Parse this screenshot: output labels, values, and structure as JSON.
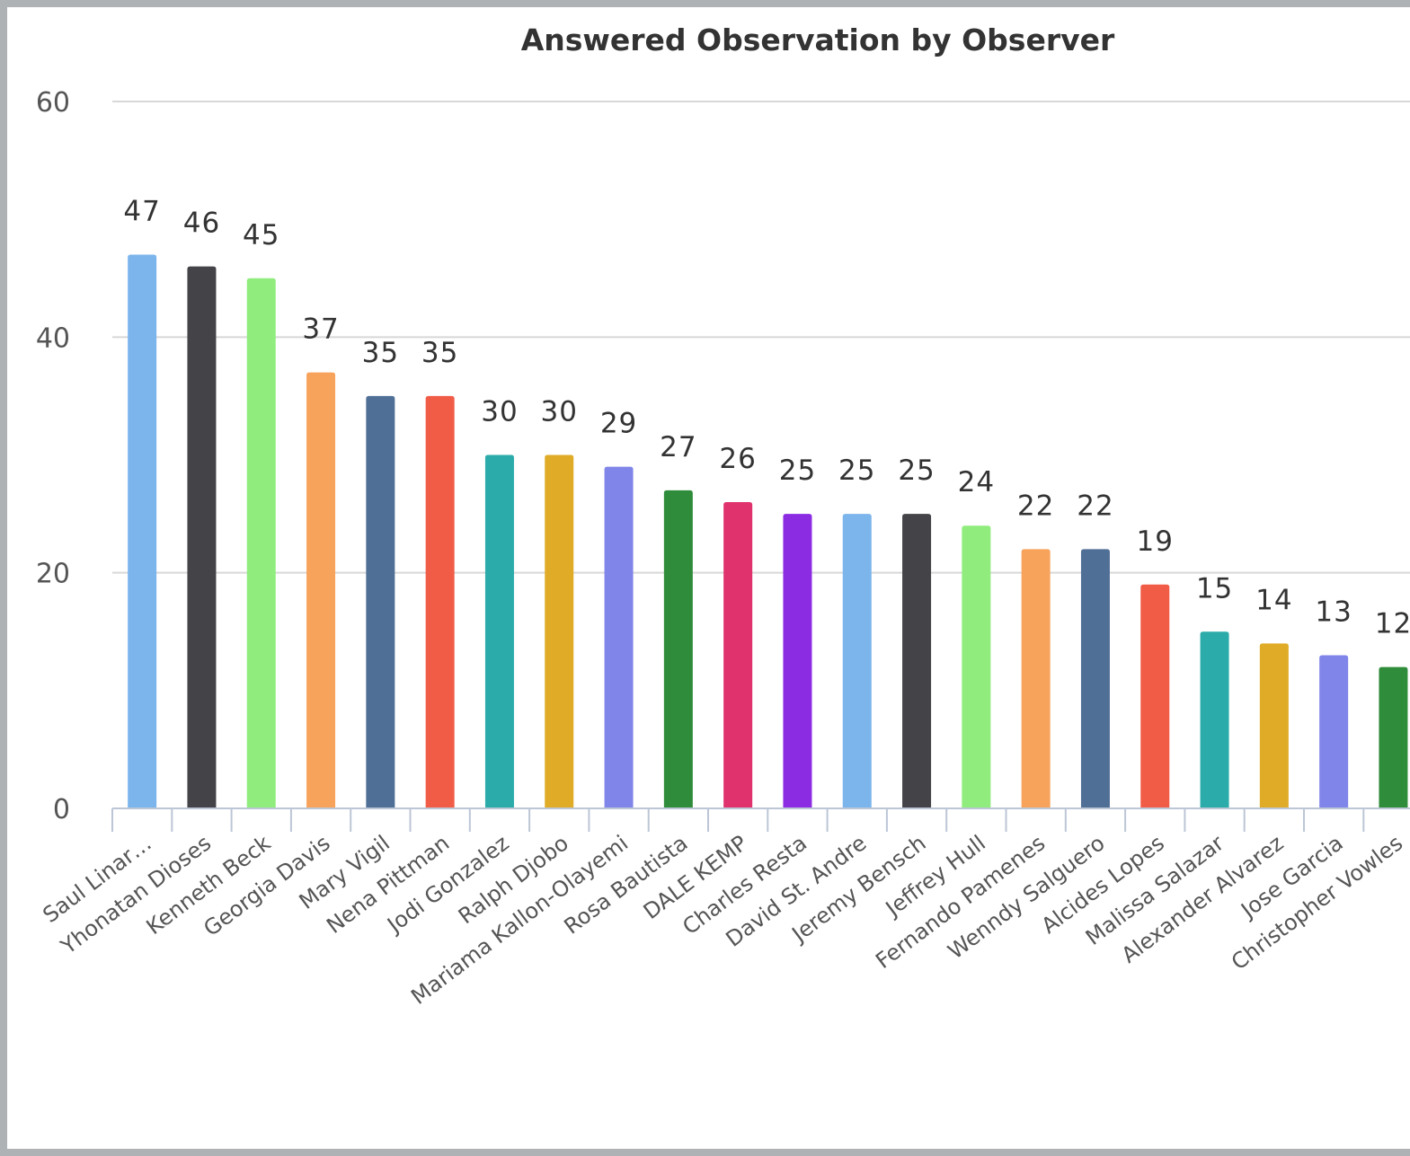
{
  "chart_data": {
    "type": "bar",
    "title": "Answered Observation by Observer",
    "xlabel": "",
    "ylabel": "",
    "ylim": [
      0,
      60
    ],
    "yticks": [
      0,
      20,
      40,
      60
    ],
    "grid": true,
    "legend": "none",
    "categories": [
      "Saul Linar…",
      "Yhonatan Dioses",
      "Kenneth Beck",
      "Georgia Davis",
      "Mary Vigil",
      "Nena Pittman",
      "Jodi Gonzalez",
      "Ralph Djobo",
      "Mariama Kallon-Olayemi",
      "Rosa Bautista",
      "DALE KEMP",
      "Charles Resta",
      "David St. Andre",
      "Jeremy Bensch",
      "Jeffrey Hull",
      "Fernando Pamenes",
      "Wenndy Salguero",
      "Alcides Lopes",
      "Malissa Salazar",
      "Alexander Alvarez",
      "Jose Garcia",
      "Christopher Vowles"
    ],
    "values": [
      47,
      46,
      45,
      37,
      35,
      35,
      30,
      30,
      29,
      27,
      26,
      25,
      25,
      25,
      24,
      22,
      22,
      19,
      15,
      14,
      13,
      12
    ],
    "value_labels": [
      "47",
      "46",
      "45",
      "37",
      "35",
      "35",
      "30",
      "30",
      "29",
      "27",
      "26",
      "25",
      "25",
      "25",
      "24",
      "22",
      "22",
      "19",
      "15",
      "14",
      "13",
      "12"
    ],
    "colors": [
      "#7cb5ec",
      "#434348",
      "#90ed7d",
      "#f7a35c",
      "#4f6f96",
      "#f15c47",
      "#2bacaa",
      "#e0ab27",
      "#8085e9",
      "#2f8c3a",
      "#e0336e",
      "#8b2be2",
      "#7cb5ec",
      "#434348",
      "#90ed7d",
      "#f7a35c",
      "#4f6f96",
      "#f15c47",
      "#2bacaa",
      "#e0ab27",
      "#8085e9",
      "#2f8c3a"
    ]
  }
}
